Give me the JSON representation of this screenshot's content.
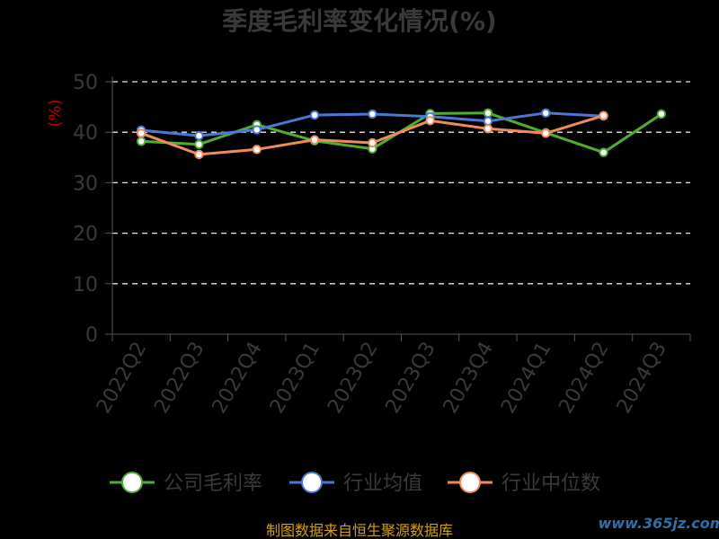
{
  "chart_data": {
    "type": "line",
    "title": "季度毛利率变化情况(%)",
    "ylabel": "(%)",
    "ylim": [
      0,
      50
    ],
    "yticks": [
      0,
      10,
      20,
      30,
      40,
      50
    ],
    "grid": true,
    "legend": "bottom",
    "categories": [
      "2022Q2",
      "2022Q3",
      "2022Q4",
      "2023Q1",
      "2023Q2",
      "2023Q3",
      "2023Q4",
      "2024Q1",
      "2024Q2",
      "2024Q3"
    ],
    "series": [
      {
        "name": "公司毛利率",
        "color": "#4fae32",
        "values": [
          38.2,
          37.6,
          41.5,
          38.3,
          36.7,
          43.7,
          43.8,
          39.9,
          36.0,
          43.6
        ]
      },
      {
        "name": "行业均值",
        "color": "#4a78d4",
        "values": [
          40.4,
          39.3,
          40.5,
          43.4,
          43.6,
          43.1,
          42.2,
          43.8,
          43.2,
          null
        ]
      },
      {
        "name": "行业中位数",
        "color": "#f08c5a",
        "values": [
          39.8,
          35.6,
          36.6,
          38.5,
          37.9,
          42.3,
          40.7,
          39.8,
          43.3,
          null
        ]
      }
    ]
  },
  "footer": {
    "source": "制图数据来自恒生聚源数据库",
    "watermark": "www.365jz.com"
  }
}
